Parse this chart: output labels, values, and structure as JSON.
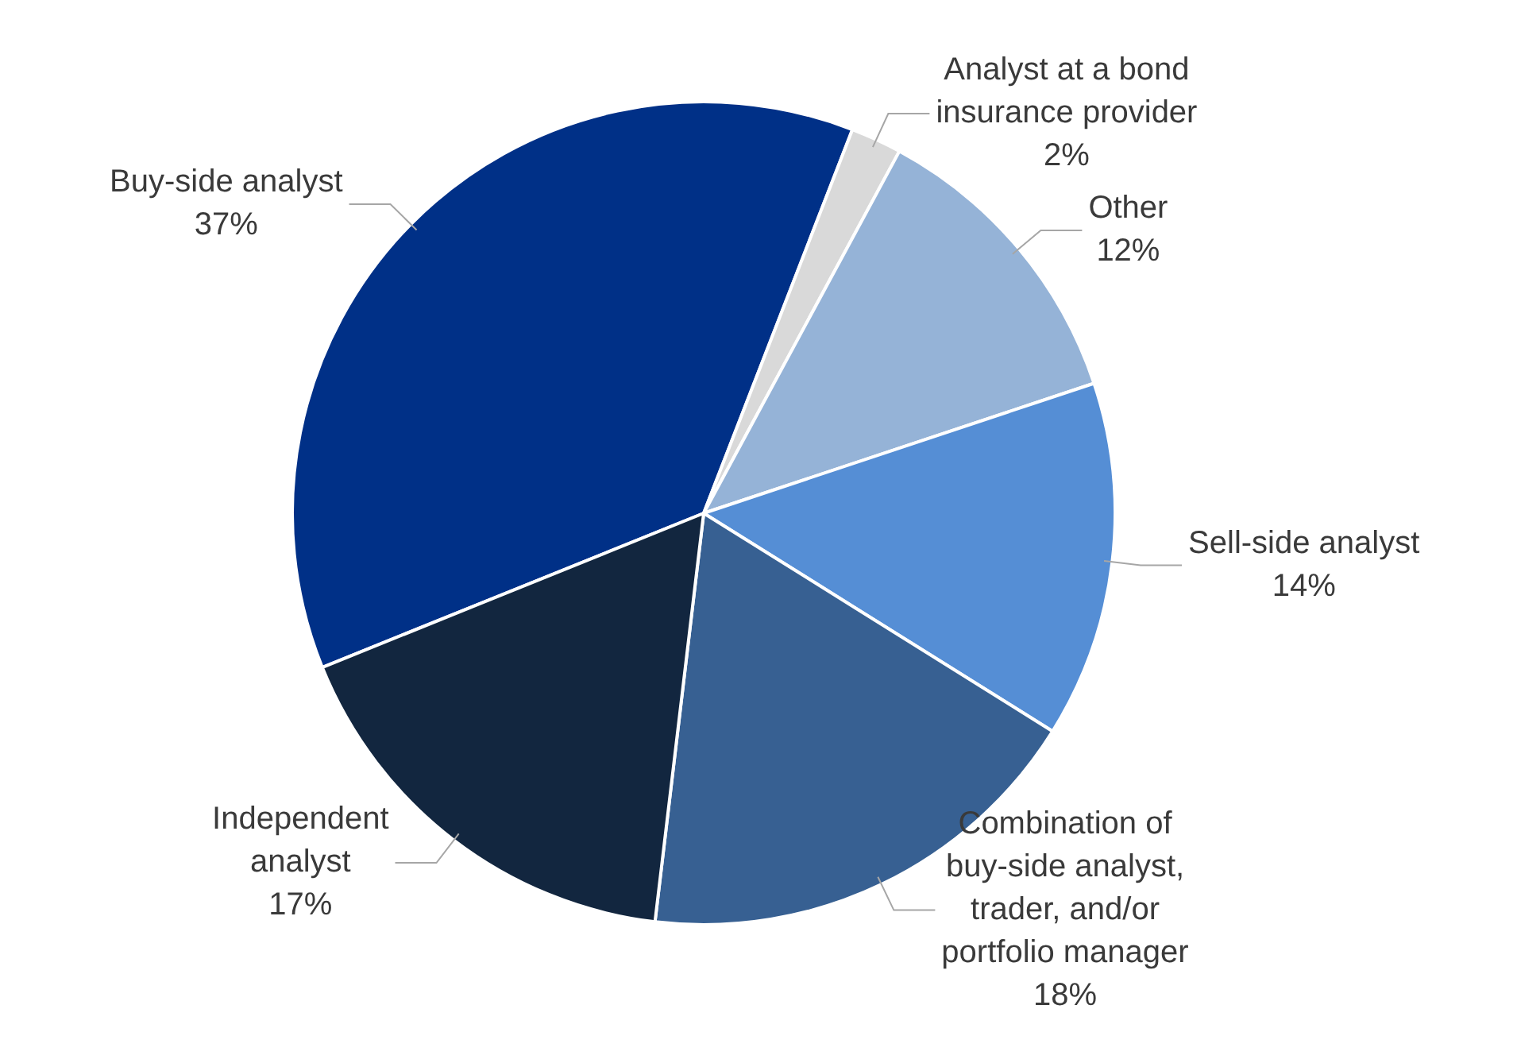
{
  "chart_data": {
    "type": "pie",
    "categories": [
      "Buy-side analyst",
      "Analyst at a bond insurance provider",
      "Other",
      "Sell-side analyst",
      "Combination of buy-side analyst, trader, and/or portfolio manager",
      "Independent analyst"
    ],
    "values": [
      37,
      2,
      12,
      14,
      18,
      17
    ],
    "value_labels": [
      "37%",
      "2%",
      "12%",
      "14%",
      "18%",
      "17%"
    ],
    "colors": [
      "#003087",
      "#d9d9d9",
      "#95b3d7",
      "#558ed5",
      "#376092",
      "#12263f"
    ],
    "legend": false
  }
}
